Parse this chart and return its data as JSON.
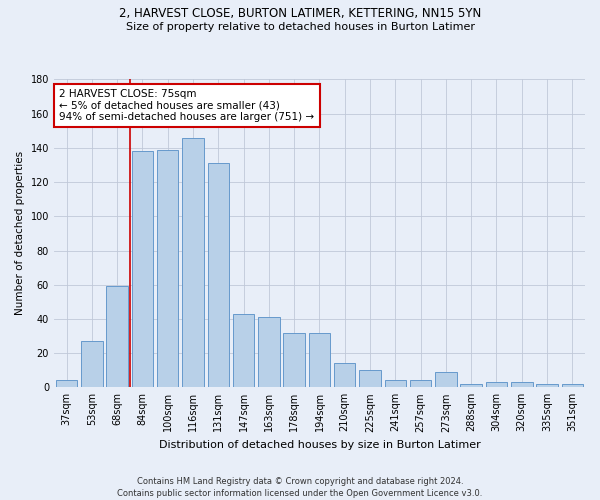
{
  "title1": "2, HARVEST CLOSE, BURTON LATIMER, KETTERING, NN15 5YN",
  "title2": "Size of property relative to detached houses in Burton Latimer",
  "xlabel": "Distribution of detached houses by size in Burton Latimer",
  "ylabel": "Number of detached properties",
  "categories": [
    "37sqm",
    "53sqm",
    "68sqm",
    "84sqm",
    "100sqm",
    "116sqm",
    "131sqm",
    "147sqm",
    "163sqm",
    "178sqm",
    "194sqm",
    "210sqm",
    "225sqm",
    "241sqm",
    "257sqm",
    "273sqm",
    "288sqm",
    "304sqm",
    "320sqm",
    "335sqm",
    "351sqm"
  ],
  "values": [
    4,
    27,
    59,
    138,
    139,
    146,
    131,
    43,
    41,
    32,
    32,
    14,
    10,
    4,
    4,
    9,
    2,
    3,
    3,
    2,
    2
  ],
  "bar_color": "#b8d0e8",
  "bar_edge_color": "#6699cc",
  "vline_x_index": 2.5,
  "vline_color": "#cc0000",
  "annotation_text": "2 HARVEST CLOSE: 75sqm\n← 5% of detached houses are smaller (43)\n94% of semi-detached houses are larger (751) →",
  "annotation_box_color": "#ffffff",
  "annotation_box_edge": "#cc0000",
  "ylim": [
    0,
    180
  ],
  "yticks": [
    0,
    20,
    40,
    60,
    80,
    100,
    120,
    140,
    160,
    180
  ],
  "footer": "Contains HM Land Registry data © Crown copyright and database right 2024.\nContains public sector information licensed under the Open Government Licence v3.0.",
  "background_color": "#e8eef8",
  "grid_color": "#c0c8d8",
  "title1_fontsize": 8.5,
  "title2_fontsize": 8.0,
  "xlabel_fontsize": 8.0,
  "ylabel_fontsize": 7.5,
  "tick_fontsize": 7.0,
  "annotation_fontsize": 7.5,
  "footer_fontsize": 6.0
}
